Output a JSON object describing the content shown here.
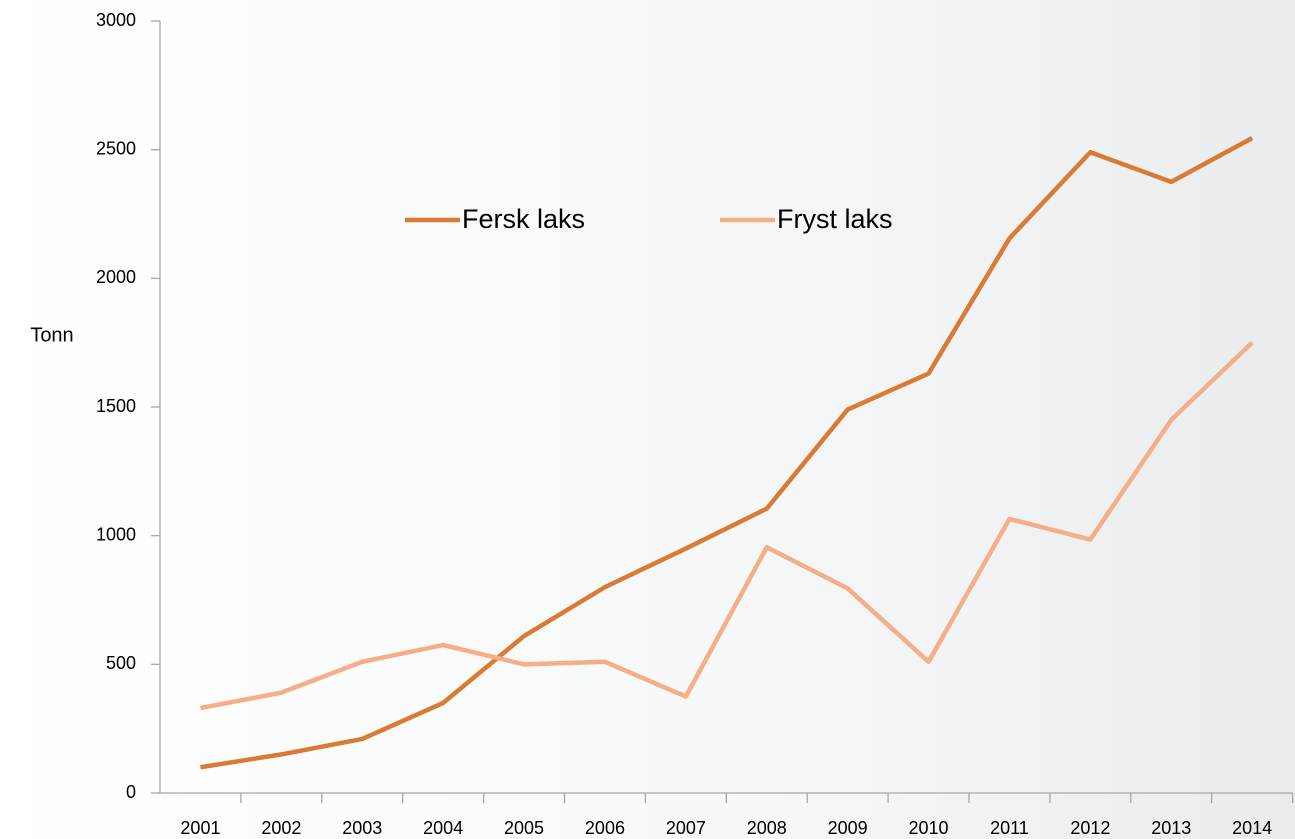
{
  "chart_data": {
    "type": "line",
    "y_label": "Tonn",
    "categories": [
      "2001",
      "2002",
      "2003",
      "2004",
      "2005",
      "2006",
      "2007",
      "2008",
      "2009",
      "2010",
      "2011",
      "2012",
      "2013",
      "2014"
    ],
    "series": [
      {
        "name": "Fersk laks",
        "color": "#d97b35",
        "values": [
          100,
          150,
          210,
          350,
          610,
          800,
          950,
          1105,
          1490,
          1630,
          2155,
          2490,
          2375,
          2545
        ]
      },
      {
        "name": "Fryst laks",
        "color": "#f5ae86",
        "values": [
          330,
          390,
          510,
          575,
          500,
          510,
          375,
          955,
          795,
          510,
          1065,
          985,
          1450,
          1750
        ]
      }
    ],
    "ylim": [
      0,
      3000
    ],
    "yticks": [
      0,
      500,
      1000,
      1500,
      2000,
      2500,
      3000
    ],
    "grid": false,
    "legend": "top"
  }
}
